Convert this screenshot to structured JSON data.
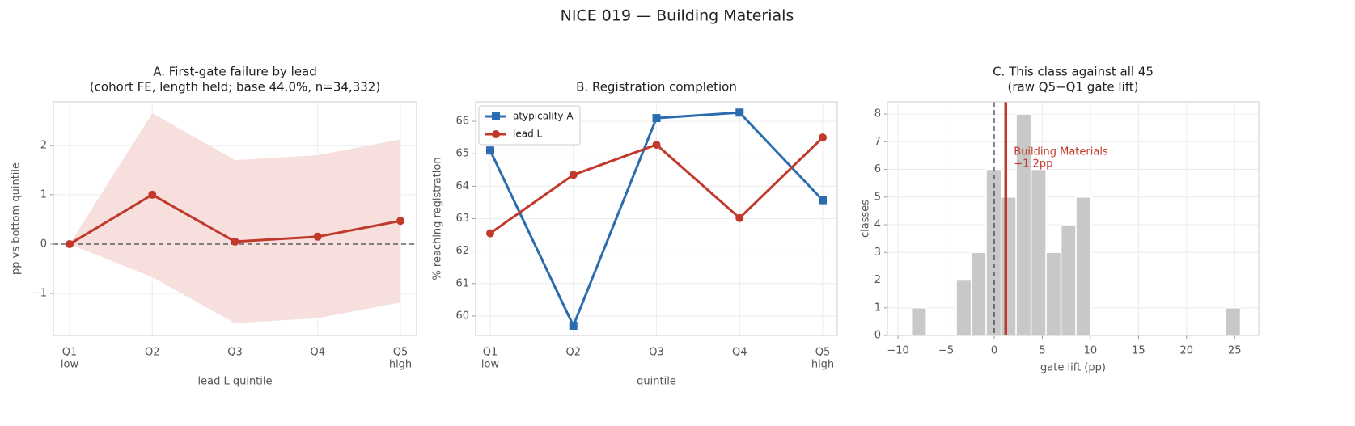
{
  "title": "NICE 019 — Building Materials",
  "chart_data": [
    {
      "type": "line",
      "title": [
        "A. First-gate failure by lead",
        "(cohort FE, length held; base 44.0%, n=34,332)"
      ],
      "categories": [
        "Q1",
        "Q2",
        "Q3",
        "Q4",
        "Q5"
      ],
      "category_sublabels": [
        "low",
        null,
        null,
        null,
        "high"
      ],
      "xlabel": "lead L quintile",
      "ylabel": "pp vs bottom quintile",
      "ylim": [
        -1.85,
        2.88
      ],
      "yticks": [
        {
          "value": -1,
          "label": "−1"
        },
        0,
        1,
        2
      ],
      "grid": true,
      "hline": 0,
      "band": {
        "color": "#f6dfdd",
        "lower": [
          0,
          -0.67,
          -1.6,
          -1.5,
          -1.18
        ],
        "upper": [
          0,
          2.65,
          1.7,
          1.8,
          2.12
        ]
      },
      "series": [
        {
          "color": "#c0392b",
          "marker": "circle",
          "values": [
            0,
            1.0,
            0.05,
            0.15,
            0.47
          ]
        }
      ]
    },
    {
      "type": "line",
      "title": [
        "B. Registration completion"
      ],
      "categories": [
        "Q1",
        "Q2",
        "Q3",
        "Q4",
        "Q5"
      ],
      "category_sublabels": [
        "low",
        null,
        null,
        null,
        "high"
      ],
      "xlabel": "quintile",
      "ylabel": "% reaching registration",
      "ylim": [
        59.4,
        66.6
      ],
      "yticks": [
        60,
        61,
        62,
        63,
        64,
        65,
        66
      ],
      "grid": true,
      "legend": "upper left",
      "series": [
        {
          "name": "atypicality A",
          "color": "#2b6cb0",
          "marker": "square",
          "values": [
            65.1,
            59.7,
            66.1,
            66.27,
            63.57
          ]
        },
        {
          "name": "lead L",
          "color": "#c0392b",
          "marker": "circle",
          "values": [
            62.55,
            64.35,
            65.28,
            63.02,
            65.5
          ]
        }
      ]
    },
    {
      "type": "histogram",
      "title": [
        "C. This class against all 45",
        "(raw Q5−Q1 gate lift)"
      ],
      "xlabel": "gate lift (pp)",
      "ylabel": "classes",
      "xlim": [
        -11.1,
        27.5
      ],
      "ylim": [
        0,
        8.44
      ],
      "xticks": [
        {
          "value": -10,
          "label": "−10"
        },
        {
          "value": -5,
          "label": "−5"
        },
        0,
        5,
        10,
        15,
        20,
        25
      ],
      "yticks": [
        0,
        1,
        2,
        3,
        4,
        5,
        6,
        7,
        8
      ],
      "grid": true,
      "color": "#c8c8c8",
      "vline": 0,
      "bins": [
        -8.6,
        -7.05,
        -5.49,
        -3.94,
        -2.38,
        -0.83,
        0.73,
        2.28,
        3.84,
        5.39,
        6.95,
        8.5,
        10.06,
        11.61,
        13.17,
        14.72,
        16.28,
        17.83,
        19.39,
        20.94,
        22.5,
        24.05,
        25.61
      ],
      "counts": [
        1,
        0,
        0,
        2,
        3,
        6,
        5,
        8,
        6,
        3,
        4,
        5,
        0,
        0,
        0,
        0,
        0,
        0,
        0,
        0,
        0,
        1
      ],
      "highlight": {
        "value": 1.2,
        "color": "#c0392b",
        "label": [
          "Building Materials",
          "+1.2pp"
        ]
      }
    }
  ]
}
